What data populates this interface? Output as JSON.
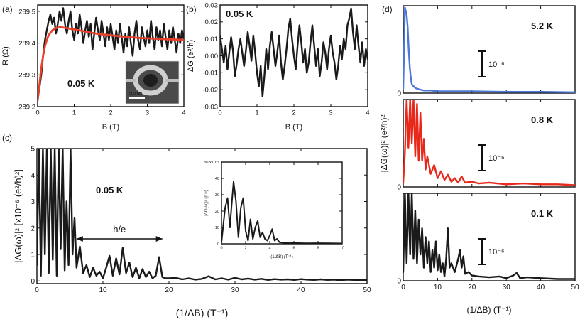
{
  "figure": {
    "panel_labels": [
      "(a)",
      "(b)",
      "(c)",
      "(d)"
    ]
  },
  "chart_data": [
    {
      "id": "a",
      "type": "line",
      "title": "",
      "xlabel": "B (T)",
      "ylabel": "R (Ω)",
      "xlim": [
        0,
        4
      ],
      "ylim": [
        289.2,
        289.52
      ],
      "xticks": [
        0,
        1,
        2,
        3,
        4
      ],
      "yticks": [
        289.2,
        289.3,
        289.4,
        289.5
      ],
      "ytick_labels": [
        "289.2",
        "289.3",
        "289.4",
        "289.5"
      ],
      "annotation": "0.05 K",
      "inset_image": "SEM micrograph of ring",
      "inset_label": "500 nm",
      "series": [
        {
          "name": "measured R(B)",
          "color": "#1a1a1a",
          "x": [
            0.0,
            0.05,
            0.1,
            0.15,
            0.2,
            0.25,
            0.3,
            0.35,
            0.4,
            0.45,
            0.5,
            0.55,
            0.6,
            0.65,
            0.7,
            0.75,
            0.8,
            0.85,
            0.9,
            0.95,
            1.0,
            1.05,
            1.1,
            1.15,
            1.2,
            1.25,
            1.3,
            1.35,
            1.4,
            1.45,
            1.5,
            1.55,
            1.6,
            1.65,
            1.7,
            1.75,
            1.8,
            1.85,
            1.9,
            1.95,
            2.0,
            2.05,
            2.1,
            2.15,
            2.2,
            2.25,
            2.3,
            2.35,
            2.4,
            2.45,
            2.5,
            2.55,
            2.6,
            2.65,
            2.7,
            2.75,
            2.8,
            2.85,
            2.9,
            2.95,
            3.0,
            3.05,
            3.1,
            3.15,
            3.2,
            3.25,
            3.3,
            3.35,
            3.4,
            3.45,
            3.5,
            3.55,
            3.6,
            3.65,
            3.7,
            3.75,
            3.8,
            3.85,
            3.9,
            3.95,
            4.0
          ],
          "y": [
            289.22,
            289.26,
            289.3,
            289.36,
            289.41,
            289.44,
            289.47,
            289.49,
            289.46,
            289.48,
            289.43,
            289.46,
            289.5,
            289.47,
            289.51,
            289.46,
            289.43,
            289.47,
            289.5,
            289.44,
            289.41,
            289.46,
            289.43,
            289.49,
            289.45,
            289.4,
            289.44,
            289.47,
            289.42,
            289.46,
            289.38,
            289.43,
            289.48,
            289.44,
            289.41,
            289.47,
            289.43,
            289.39,
            289.45,
            289.41,
            289.46,
            289.42,
            289.38,
            289.44,
            289.4,
            289.46,
            289.42,
            289.37,
            289.43,
            289.39,
            289.45,
            289.4,
            289.36,
            289.43,
            289.47,
            289.41,
            289.38,
            289.45,
            289.42,
            289.39,
            289.44,
            289.4,
            289.47,
            289.42,
            289.38,
            289.45,
            289.41,
            289.44,
            289.39,
            289.46,
            289.42,
            289.38,
            289.44,
            289.4,
            289.45,
            289.41,
            289.37,
            289.43,
            289.4,
            289.44,
            289.41
          ]
        },
        {
          "name": "fit",
          "color": "#e8412b",
          "x": [
            0.0,
            0.05,
            0.1,
            0.15,
            0.2,
            0.25,
            0.3,
            0.4,
            0.5,
            0.6,
            0.7,
            0.8,
            0.9,
            1.0,
            1.2,
            1.4,
            1.6,
            1.8,
            2.0,
            2.2,
            2.4,
            2.6,
            2.8,
            3.0,
            3.2,
            3.4,
            3.6,
            3.8,
            4.0
          ],
          "y": [
            289.22,
            289.27,
            289.32,
            289.36,
            289.39,
            289.41,
            289.425,
            289.44,
            289.447,
            289.45,
            289.449,
            289.447,
            289.445,
            289.443,
            289.439,
            289.434,
            289.43,
            289.427,
            289.425,
            289.422,
            289.42,
            289.418,
            289.416,
            289.415,
            289.414,
            289.413,
            289.412,
            289.411,
            289.41
          ]
        }
      ]
    },
    {
      "id": "b",
      "type": "line",
      "title": "",
      "xlabel": "B (T)",
      "ylabel": "ΔG (e²/h)",
      "xlim": [
        0,
        4
      ],
      "ylim": [
        -0.03,
        0.03
      ],
      "xticks": [
        0,
        1,
        2,
        3,
        4
      ],
      "yticks": [
        -0.03,
        -0.02,
        -0.01,
        0.0,
        0.01,
        0.02,
        0.03
      ],
      "ytick_labels": [
        "-0.03",
        "-0.02",
        "-0.01",
        "0.00",
        "0.01",
        "0.02",
        "0.03"
      ],
      "annotation": "0.05 K",
      "series": [
        {
          "name": "ΔG(B)",
          "color": "#1a1a1a",
          "x": [
            0.0,
            0.05,
            0.1,
            0.15,
            0.2,
            0.25,
            0.3,
            0.35,
            0.4,
            0.45,
            0.5,
            0.55,
            0.6,
            0.65,
            0.7,
            0.75,
            0.8,
            0.85,
            0.9,
            0.95,
            1.0,
            1.05,
            1.1,
            1.15,
            1.2,
            1.25,
            1.3,
            1.35,
            1.4,
            1.45,
            1.5,
            1.55,
            1.6,
            1.65,
            1.7,
            1.75,
            1.8,
            1.85,
            1.9,
            1.95,
            2.0,
            2.05,
            2.1,
            2.15,
            2.2,
            2.25,
            2.3,
            2.35,
            2.4,
            2.45,
            2.5,
            2.55,
            2.6,
            2.65,
            2.7,
            2.75,
            2.8,
            2.85,
            2.9,
            2.95,
            3.0,
            3.05,
            3.1,
            3.15,
            3.2,
            3.25,
            3.3,
            3.35,
            3.4,
            3.45,
            3.5,
            3.55,
            3.6,
            3.65,
            3.7,
            3.75,
            3.8,
            3.85,
            3.9,
            3.95,
            4.0
          ],
          "y": [
            0.012,
            0.004,
            -0.004,
            0.006,
            -0.008,
            0.002,
            0.011,
            0.003,
            -0.012,
            -0.005,
            0.004,
            0.01,
            0.002,
            -0.006,
            0.003,
            0.014,
            0.006,
            -0.003,
            0.012,
            0.002,
            -0.01,
            -0.018,
            -0.006,
            -0.024,
            -0.012,
            0.004,
            -0.008,
            0.006,
            0.014,
            0.004,
            -0.006,
            0.002,
            0.012,
            -0.004,
            -0.014,
            -0.006,
            0.004,
            0.016,
            0.022,
            0.01,
            0.0,
            -0.008,
            0.006,
            0.018,
            0.008,
            -0.004,
            0.004,
            -0.01,
            -0.004,
            0.008,
            0.018,
            0.006,
            -0.006,
            0.004,
            -0.012,
            -0.004,
            0.008,
            0.002,
            -0.008,
            0.004,
            0.012,
            0.002,
            -0.004,
            -0.014,
            -0.006,
            0.006,
            -0.002,
            0.01,
            0.004,
            0.018,
            0.022,
            0.028,
            0.014,
            0.004,
            0.018,
            0.006,
            -0.004,
            0.008,
            -0.006,
            0.004,
            -0.002
          ]
        }
      ]
    },
    {
      "id": "c",
      "type": "line",
      "title": "",
      "xlabel": "(1/ΔB) (T⁻¹)",
      "ylabel": "|ΔG(ω)|² [x10⁻⁶ (e²/h)²]",
      "xlim": [
        0,
        50
      ],
      "ylim": [
        -0.1,
        5
      ],
      "xticks": [
        0,
        10,
        20,
        30,
        40,
        50
      ],
      "yticks": [
        0,
        1,
        2,
        3,
        4,
        5
      ],
      "annotations": [
        "0.05 K",
        "h/e"
      ],
      "arrow_range": [
        6,
        19
      ],
      "series": [
        {
          "name": "power spectrum",
          "color": "#1a1a1a",
          "x": [
            0.0,
            0.3,
            0.6,
            0.9,
            1.2,
            1.5,
            1.8,
            2.1,
            2.4,
            2.7,
            3.0,
            3.3,
            3.6,
            3.9,
            4.2,
            4.5,
            4.8,
            5.1,
            5.4,
            5.7,
            6.0,
            6.5,
            7.0,
            7.5,
            8.0,
            8.5,
            9.0,
            9.5,
            10.0,
            10.5,
            11.0,
            11.5,
            12.0,
            12.5,
            13.0,
            13.5,
            14.0,
            14.5,
            15.0,
            15.5,
            16.0,
            16.5,
            17.0,
            17.5,
            18.0,
            18.5,
            19.0,
            19.5,
            20.0,
            21.0,
            22.0,
            23.0,
            24.0,
            25.0,
            26.0,
            27.0,
            28.0,
            29.0,
            30.0,
            31.0,
            32.0,
            33.0,
            34.0,
            35.0,
            36.0,
            37.0,
            38.0,
            39.0,
            40.0,
            41.0,
            42.0,
            43.0,
            44.0,
            45.0,
            46.0,
            47.0,
            48.0,
            49.0,
            50.0
          ],
          "y": [
            0.6,
            5.0,
            0.2,
            5.0,
            1.0,
            5.0,
            0.3,
            5.0,
            0.8,
            5.0,
            0.2,
            5.0,
            1.2,
            5.0,
            0.4,
            3.0,
            0.6,
            5.0,
            1.0,
            2.4,
            0.5,
            1.3,
            0.3,
            0.6,
            0.15,
            0.5,
            0.2,
            0.35,
            0.1,
            0.5,
            0.95,
            0.2,
            0.85,
            0.25,
            1.25,
            0.3,
            0.7,
            0.15,
            0.5,
            0.1,
            0.45,
            0.15,
            0.35,
            0.1,
            0.2,
            0.9,
            0.15,
            0.1,
            0.1,
            0.12,
            0.06,
            0.1,
            0.05,
            0.08,
            0.18,
            0.06,
            0.1,
            0.05,
            0.12,
            0.06,
            0.09,
            0.05,
            0.08,
            0.04,
            0.07,
            0.05,
            0.06,
            0.04,
            0.07,
            0.05,
            0.04,
            0.06,
            0.04,
            0.05,
            0.03,
            0.05,
            0.04,
            0.03,
            0.04
          ]
        }
      ],
      "inset": {
        "type": "line",
        "xlabel": "(1/ΔB) (T⁻¹)",
        "ylabel": "|ΔG(ω)|² (p.u)",
        "xlim": [
          0,
          10
        ],
        "ylim": [
          0,
          50
        ],
        "xticks": [
          0,
          2,
          4,
          6,
          8,
          10
        ],
        "yticks": [
          0,
          10,
          20,
          30,
          40,
          50
        ],
        "ytick_labels": [
          "0",
          "10",
          "20",
          "30",
          "40",
          "50 x10⁻⁶"
        ],
        "x": [
          0.0,
          0.3,
          0.5,
          0.7,
          0.8,
          1.0,
          1.2,
          1.4,
          1.6,
          1.8,
          2.0,
          2.2,
          2.4,
          2.6,
          2.8,
          3.0,
          3.2,
          3.4,
          3.6,
          3.8,
          4.0,
          4.2,
          4.4,
          4.6,
          4.8,
          5.0,
          5.2,
          5.4,
          5.6,
          6.0,
          7.0,
          8.0,
          9.0,
          10.0
        ],
        "y": [
          1,
          22,
          28,
          10,
          20,
          38,
          26,
          4,
          22,
          28,
          8,
          2,
          15,
          3,
          10,
          14,
          4,
          7,
          3,
          2,
          5,
          9,
          2,
          3,
          1,
          0.8,
          0.5,
          0.7,
          0.4,
          0.5,
          0.3,
          0.4,
          0.3,
          0.2
        ]
      }
    },
    {
      "id": "d",
      "type": "line",
      "title": "",
      "xlabel": "(1/ΔB) (T⁻¹)",
      "ylabel": "|ΔG(ω)|² (e²/h)²",
      "xlim": [
        0,
        50
      ],
      "xticks": [
        0,
        10,
        20,
        30,
        40,
        50
      ],
      "panels": [
        {
          "temperature": "5.2 K",
          "scale_bar": "10⁻⁶",
          "color": "#4a77d8",
          "x": [
            0.0,
            0.5,
            1.0,
            1.3,
            1.6,
            1.9,
            2.2,
            2.5,
            3.0,
            3.5,
            4.0,
            5.0,
            6.0,
            8.0,
            10.0,
            15.0,
            20.0,
            30.0,
            40.0,
            50.0
          ],
          "y": [
            0.05,
            0.98,
            0.9,
            0.75,
            0.5,
            0.3,
            0.18,
            0.1,
            0.08,
            0.06,
            0.05,
            0.04,
            0.03,
            0.03,
            0.02,
            0.02,
            0.02,
            0.015,
            0.015,
            0.01
          ]
        },
        {
          "temperature": "0.8 K",
          "scale_bar": "10⁻⁶",
          "color": "#e8281b",
          "x": [
            0.0,
            0.5,
            1.0,
            1.5,
            2.0,
            2.5,
            3.0,
            3.5,
            4.0,
            4.5,
            5.0,
            5.5,
            6.0,
            6.5,
            7.0,
            8.0,
            9.0,
            10.0,
            11.0,
            12.0,
            13.0,
            14.0,
            15.0,
            16.0,
            17.0,
            18.0,
            20.0,
            22.0,
            25.0,
            30.0,
            35.0,
            40.0,
            45.0,
            50.0
          ],
          "y": [
            0.05,
            0.4,
            1.0,
            0.45,
            1.0,
            0.5,
            1.0,
            0.35,
            0.95,
            0.3,
            0.85,
            0.3,
            0.55,
            0.2,
            0.35,
            0.15,
            0.25,
            0.1,
            0.18,
            0.08,
            0.14,
            0.06,
            0.1,
            0.05,
            0.12,
            0.05,
            0.06,
            0.04,
            0.05,
            0.03,
            0.04,
            0.03,
            0.03,
            0.02
          ]
        },
        {
          "temperature": "0.1 K",
          "scale_bar": "10⁻⁶",
          "color": "#1a1a1a",
          "x": [
            0.0,
            0.5,
            1.0,
            1.5,
            2.0,
            2.5,
            3.0,
            3.5,
            4.0,
            4.5,
            5.0,
            5.5,
            6.0,
            6.5,
            7.0,
            7.5,
            8.0,
            8.5,
            9.0,
            9.5,
            10.0,
            10.5,
            11.0,
            11.5,
            12.0,
            12.5,
            13.0,
            13.5,
            14.0,
            15.0,
            16.0,
            16.5,
            17.0,
            17.5,
            18.0,
            19.0,
            20.0,
            22.0,
            25.0,
            28.0,
            30.0,
            32.0,
            33.0,
            34.0,
            36.0,
            40.0,
            45.0,
            50.0
          ],
          "y": [
            0.1,
            1.0,
            0.2,
            1.0,
            0.3,
            1.0,
            0.25,
            0.8,
            0.2,
            0.7,
            0.3,
            0.6,
            0.15,
            0.5,
            0.2,
            0.45,
            0.1,
            0.35,
            0.15,
            0.45,
            0.12,
            0.3,
            0.1,
            0.2,
            0.05,
            0.25,
            0.6,
            0.15,
            0.2,
            0.1,
            0.25,
            0.35,
            0.15,
            0.28,
            0.08,
            0.1,
            0.06,
            0.05,
            0.04,
            0.05,
            0.03,
            0.06,
            0.09,
            0.03,
            0.04,
            0.03,
            0.02,
            0.02
          ]
        }
      ]
    }
  ]
}
